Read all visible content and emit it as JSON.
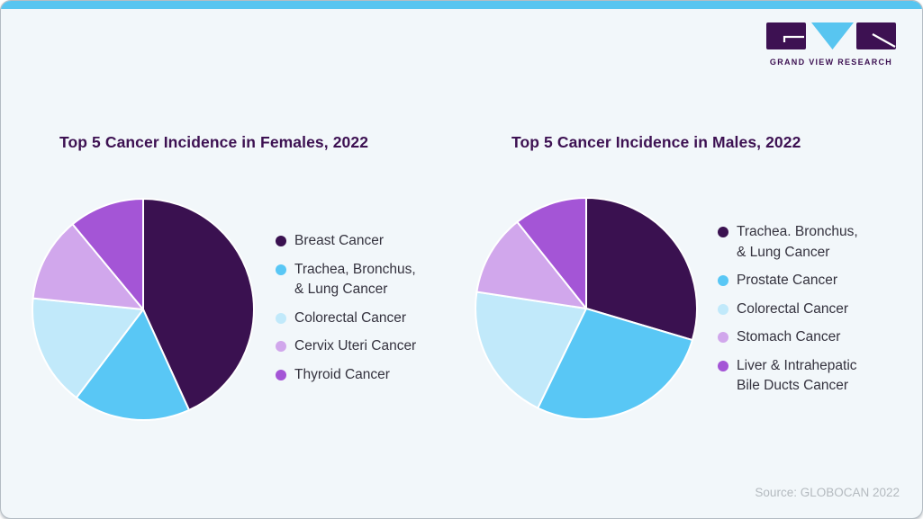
{
  "page": {
    "background": "#f2f7fa",
    "top_bar_color": "#58c5f0",
    "border_color": "#b4bcc3"
  },
  "logo": {
    "wordmark": "GRAND VIEW RESEARCH",
    "dark_color": "#3d1152",
    "accent_color": "#58c5f0"
  },
  "source_note": "Source: GLOBOCAN 2022",
  "chart_data": [
    {
      "type": "pie",
      "title": "Top 5 Cancer Incidence in Females, 2022",
      "legend_position": "right",
      "start_angle_deg": 0,
      "direction": "clockwise",
      "slices": [
        {
          "label": "Breast Cancer",
          "value_pct": 43.2,
          "color": "#3a1150"
        },
        {
          "label": "Trachea, Bronchus, & Lung Cancer",
          "legend_lines": [
            "Trachea, Bronchus,",
            "& Lung Cancer"
          ],
          "value_pct": 17.1,
          "color": "#59c7f5"
        },
        {
          "label": "Colorectal Cancer",
          "value_pct": 16.3,
          "color": "#c1e9fa"
        },
        {
          "label": "Cervix Uteri Cancer",
          "value_pct": 12.4,
          "color": "#d1a7ec"
        },
        {
          "label": "Thyroid Cancer",
          "value_pct": 11.0,
          "color": "#a455d6"
        }
      ]
    },
    {
      "type": "pie",
      "title": "Top 5 Cancer Incidence in Males, 2022",
      "legend_position": "right",
      "start_angle_deg": 0,
      "direction": "clockwise",
      "slices": [
        {
          "label": "Trachea. Bronchus, & Lung Cancer",
          "legend_lines": [
            "Trachea. Bronchus,",
            "& Lung Cancer"
          ],
          "value_pct": 29.6,
          "color": "#3a1150"
        },
        {
          "label": "Prostate Cancer",
          "value_pct": 27.6,
          "color": "#59c7f5"
        },
        {
          "label": "Colorectal Cancer",
          "value_pct": 20.2,
          "color": "#c1e9fa"
        },
        {
          "label": "Stomach Cancer",
          "value_pct": 11.9,
          "color": "#d1a7ec"
        },
        {
          "label": "Liver & Intrahepatic Bile Ducts Cancer",
          "legend_lines": [
            "Liver & Intrahepatic",
            "Bile Ducts Cancer"
          ],
          "value_pct": 10.7,
          "color": "#a455d6"
        }
      ]
    }
  ]
}
